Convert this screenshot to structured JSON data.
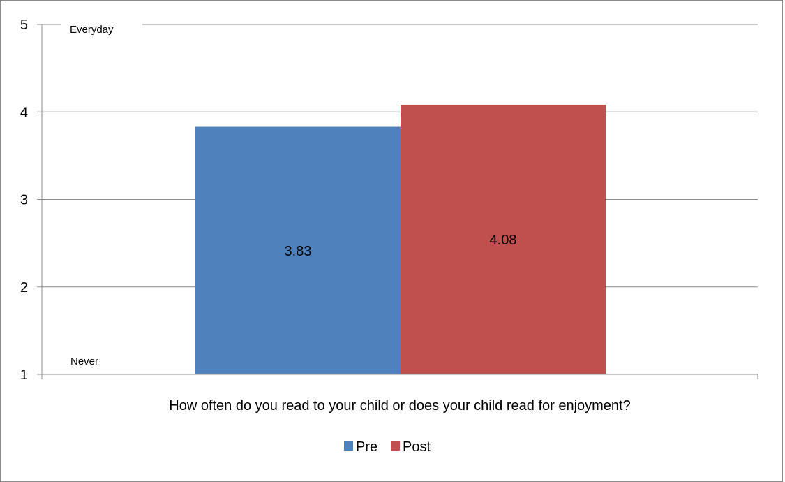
{
  "chart_data": {
    "type": "bar",
    "categories": [
      "How often do you read to your child or does your child read for enjoyment?"
    ],
    "series": [
      {
        "name": "Pre",
        "values": [
          3.83
        ],
        "color": "#4f81bd"
      },
      {
        "name": "Post",
        "values": [
          4.08
        ],
        "color": "#c0504d"
      }
    ],
    "data_labels": [
      "3.83",
      "4.08"
    ],
    "ylim": [
      1,
      5
    ],
    "y_ticks": [
      "1",
      "2",
      "3",
      "4",
      "5"
    ],
    "annotations": {
      "top": "Everyday",
      "bottom": "Never"
    },
    "grid": true,
    "legend_position": "bottom"
  }
}
